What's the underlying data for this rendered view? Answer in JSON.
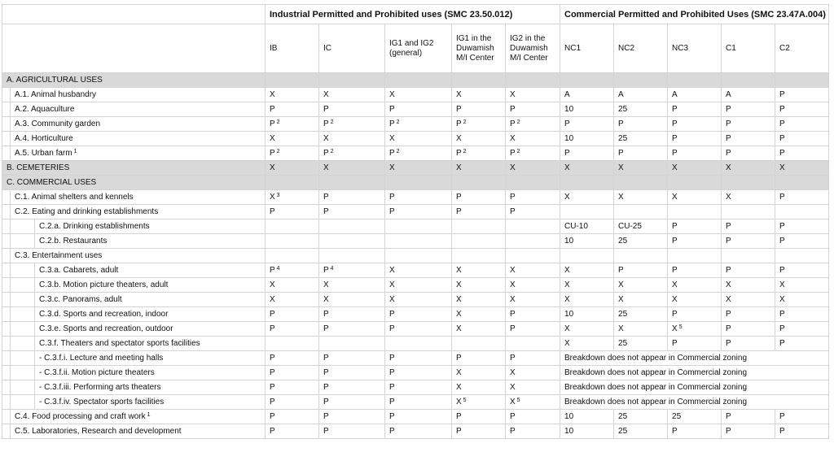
{
  "header": {
    "groups": [
      "Industrial Permitted and Prohibited uses (SMC 23.50.012)",
      "Commercial Permitted and Prohibited Uses (SMC 23.47A.004)"
    ],
    "columns": [
      "IB",
      "IC",
      "IG1 and IG2 (general)",
      "IG1 in the Duwamish M/I Center",
      "IG2 in the Duwamish M/I Center",
      "NC1",
      "NC2",
      "NC3",
      "C1",
      "C2"
    ]
  },
  "sections": [
    {
      "title": "A. AGRICULTURAL USES",
      "rows": [
        {
          "label": "A.1. Animal husbandry",
          "cells": [
            "X",
            "X",
            "X",
            "X",
            "X",
            "A",
            "A",
            "A",
            "A",
            "P"
          ]
        },
        {
          "label": "A.2. Aquaculture",
          "cells": [
            "P",
            "P",
            "P",
            "P",
            "P",
            "10",
            "25",
            "P",
            "P",
            "P"
          ]
        },
        {
          "label": "A.3. Community garden",
          "cells": [
            {
              "text": "P",
              "sup": "2"
            },
            {
              "text": "P",
              "sup": "2"
            },
            {
              "text": "P",
              "sup": "2"
            },
            {
              "text": "P",
              "sup": "2"
            },
            {
              "text": "P",
              "sup": "2"
            },
            "P",
            "P",
            "P",
            "P",
            "P"
          ]
        },
        {
          "label": "A.4. Horticulture",
          "cells": [
            "X",
            "X",
            "X",
            "X",
            "X",
            "10",
            "25",
            "P",
            "P",
            "P"
          ]
        },
        {
          "label": "A.5. Urban farm",
          "sup": "1",
          "cells": [
            {
              "text": "P",
              "sup": "2"
            },
            {
              "text": "P",
              "sup": "2"
            },
            {
              "text": "P",
              "sup": "2"
            },
            {
              "text": "P",
              "sup": "2"
            },
            {
              "text": "P",
              "sup": "2"
            },
            "P",
            "P",
            "P",
            "P",
            "P"
          ]
        }
      ]
    },
    {
      "title": "B. CEMETERIES",
      "cells": [
        "X",
        "X",
        "X",
        "X",
        "X",
        "X",
        "X",
        "X",
        "X",
        "X"
      ]
    },
    {
      "title": "C. COMMERCIAL USES",
      "rows": [
        {
          "label": "C.1. Animal shelters and kennels",
          "cells": [
            {
              "text": "X",
              "sup": "3"
            },
            "P",
            "P",
            "P",
            "P",
            "X",
            "X",
            "X",
            "X",
            "P"
          ]
        },
        {
          "label": "C.2. Eating and drinking establishments",
          "cells": [
            "P",
            "P",
            "P",
            "P",
            "P",
            null,
            null,
            null,
            null,
            null
          ],
          "rows": [
            {
              "label": "C.2.a. Drinking establishments",
              "cells": [
                null,
                null,
                null,
                null,
                null,
                "CU-10",
                "CU-25",
                "P",
                "P",
                "P"
              ]
            },
            {
              "label": "C.2.b. Restaurants",
              "cells": [
                null,
                null,
                null,
                null,
                null,
                "10",
                "25",
                "P",
                "P",
                "P"
              ]
            }
          ]
        },
        {
          "label": "C.3. Entertainment uses",
          "cells": [
            null,
            null,
            null,
            null,
            null,
            null,
            null,
            null,
            null,
            null
          ],
          "rows": [
            {
              "label": "C.3.a. Cabarets, adult",
              "cells": [
                {
                  "text": "P",
                  "sup": "4"
                },
                {
                  "text": "P",
                  "sup": "4"
                },
                "X",
                "X",
                "X",
                "X",
                "P",
                "P",
                "P",
                "P"
              ]
            },
            {
              "label": "C.3.b. Motion picture theaters, adult",
              "cells": [
                "X",
                "X",
                "X",
                "X",
                "X",
                "X",
                "X",
                "X",
                "X",
                "X"
              ]
            },
            {
              "label": "C.3.c. Panorams, adult",
              "cells": [
                "X",
                "X",
                "X",
                "X",
                "X",
                "X",
                "X",
                "X",
                "X",
                "X"
              ]
            },
            {
              "label": "C.3.d. Sports and recreation, indoor",
              "cells": [
                "P",
                "P",
                "P",
                "X",
                "P",
                "10",
                "25",
                "P",
                "P",
                "P"
              ]
            },
            {
              "label": "C.3.e. Sports and recreation, outdoor",
              "cells": [
                "P",
                "P",
                "P",
                "X",
                "P",
                "X",
                "X",
                {
                  "text": "X",
                  "sup": "5"
                },
                "P",
                "P"
              ]
            },
            {
              "label": "C.3.f. Theaters and spectator sports facilities",
              "cells": [
                null,
                null,
                null,
                null,
                null,
                "X",
                "25",
                "P",
                "P",
                "P"
              ],
              "rows": [
                {
                  "label": "- C.3.f.i. Lecture and meeting halls",
                  "cells": [
                    "P",
                    "P",
                    "P",
                    "P",
                    "P"
                  ],
                  "note": "Breakdown does not appear in Commercial zoning"
                },
                {
                  "label": "- C.3.f.ii. Motion picture theaters",
                  "cells": [
                    "P",
                    "P",
                    "P",
                    "X",
                    "X"
                  ],
                  "note": "Breakdown does not appear in Commercial zoning"
                },
                {
                  "label": "- C.3.f.iii. Performing arts theaters",
                  "cells": [
                    "P",
                    "P",
                    "P",
                    "X",
                    "X"
                  ],
                  "note": "Breakdown does not appear in Commercial zoning"
                },
                {
                  "label": "- C.3.f.iv. Spectator sports facilities",
                  "cells": [
                    "P",
                    "P",
                    "P",
                    {
                      "text": "X",
                      "sup": "5"
                    },
                    {
                      "text": "X",
                      "sup": "5"
                    }
                  ],
                  "note": "Breakdown does not appear in Commercial zoning"
                }
              ]
            }
          ]
        },
        {
          "label": "C.4. Food processing and craft work",
          "sup": "1",
          "cells": [
            "P",
            "P",
            "P",
            "P",
            "P",
            "10",
            "25",
            "25",
            "P",
            "P"
          ]
        },
        {
          "label": "C.5. Laboratories, Research and development",
          "cells": [
            "P",
            "P",
            "P",
            "P",
            "P",
            "10",
            "25",
            "P",
            "P",
            "P"
          ]
        }
      ]
    }
  ]
}
